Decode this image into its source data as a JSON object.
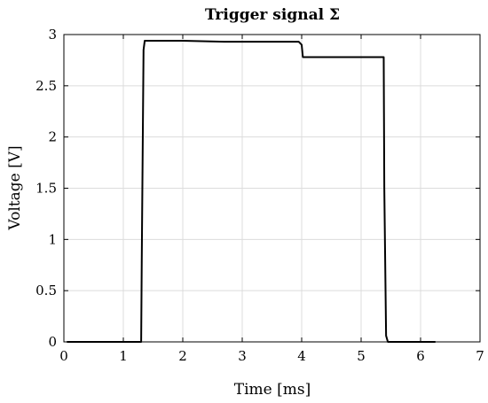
{
  "chart_data": {
    "type": "line",
    "title": "Trigger signal Σ",
    "xlabel": "Time [ms]",
    "ylabel": "Voltage [V]",
    "xlim": [
      0,
      7
    ],
    "ylim": [
      0,
      3
    ],
    "xticks": [
      0,
      1,
      2,
      3,
      4,
      5,
      6,
      7
    ],
    "yticks": [
      0,
      0.5,
      1,
      1.5,
      2,
      2.5,
      3
    ],
    "xtick_labels": [
      "0",
      "1",
      "2",
      "3",
      "4",
      "5",
      "6",
      "7"
    ],
    "ytick_labels": [
      "0",
      "0.5",
      "1",
      "1.5",
      "2",
      "2.5",
      "3"
    ],
    "grid": true,
    "series": [
      {
        "color": "#000000",
        "x": [
          0.05,
          1.3,
          1.31,
          1.34,
          1.36,
          2.0,
          2.7,
          3.0,
          3.95,
          4.0,
          4.02,
          4.05,
          5.38,
          5.39,
          5.42,
          5.45,
          6.25
        ],
        "y": [
          0.0,
          0.0,
          0.8,
          2.85,
          2.94,
          2.94,
          2.93,
          2.93,
          2.93,
          2.9,
          2.78,
          2.78,
          2.78,
          1.5,
          0.06,
          0.0,
          0.0
        ]
      }
    ]
  }
}
